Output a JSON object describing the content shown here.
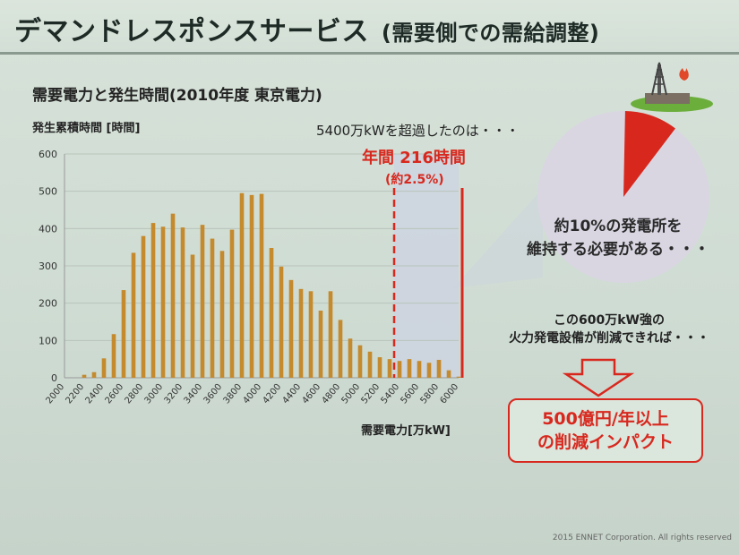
{
  "slide": {
    "title": "デマンドレスポンスサービス",
    "title_sub": "(需要側での需給調整)"
  },
  "annotations": {
    "exceed_text": "5400万kWを超過したのは・・・",
    "annual_hours": "年間 216時間",
    "annual_pct": "(約2.5%)",
    "pie_caption_line1": "約10%の発電所を",
    "pie_caption_line2": "維持する必要がある・・・",
    "reduction_line1": "この600万kW強の",
    "reduction_line2": "火力発電設備が削減できれば・・・",
    "impact_line1": "500億円/年以上",
    "impact_line2": "の削減インパクト"
  },
  "footer": "2015 ENNET Corporation. All rights reserved",
  "colors": {
    "bar": "#c48a2d",
    "accent_red": "#d8281e",
    "pie_gray": "#d9d6e2",
    "highlight_band": "#cdd3e1"
  },
  "chart_data": {
    "type": "bar",
    "title": "需要電力と発生時間(2010年度 東京電力)",
    "ylabel": "発生累積時間 [時間]",
    "xlabel": "需要電力[万kW]",
    "ylim": [
      0,
      600
    ],
    "yticks": [
      0,
      100,
      200,
      300,
      400,
      500,
      600
    ],
    "xlim": [
      2000,
      6000
    ],
    "xticks": [
      2000,
      2200,
      2400,
      2600,
      2800,
      3000,
      3200,
      3400,
      3600,
      3800,
      4000,
      4200,
      4400,
      4600,
      4800,
      5000,
      5200,
      5400,
      5600,
      5800,
      6000
    ],
    "grid": true,
    "x": [
      2200,
      2300,
      2400,
      2500,
      2600,
      2700,
      2800,
      2900,
      3000,
      3100,
      3200,
      3300,
      3400,
      3500,
      3600,
      3700,
      3800,
      3900,
      4000,
      4100,
      4200,
      4300,
      4400,
      4500,
      4600,
      4700,
      4800,
      4900,
      5000,
      5100,
      5200,
      5300,
      5400,
      5500,
      5600,
      5700,
      5800,
      5900,
      6000
    ],
    "values": [
      8,
      15,
      52,
      117,
      235,
      335,
      380,
      415,
      405,
      440,
      403,
      330,
      410,
      373,
      340,
      397,
      495,
      490,
      493,
      348,
      298,
      262,
      238,
      232,
      180,
      232,
      155,
      105,
      87,
      70,
      55,
      50,
      45,
      50,
      45,
      40,
      48,
      20,
      3
    ],
    "threshold_x": 5400,
    "max_x": 6000
  },
  "pie": {
    "share_percent": 10
  }
}
